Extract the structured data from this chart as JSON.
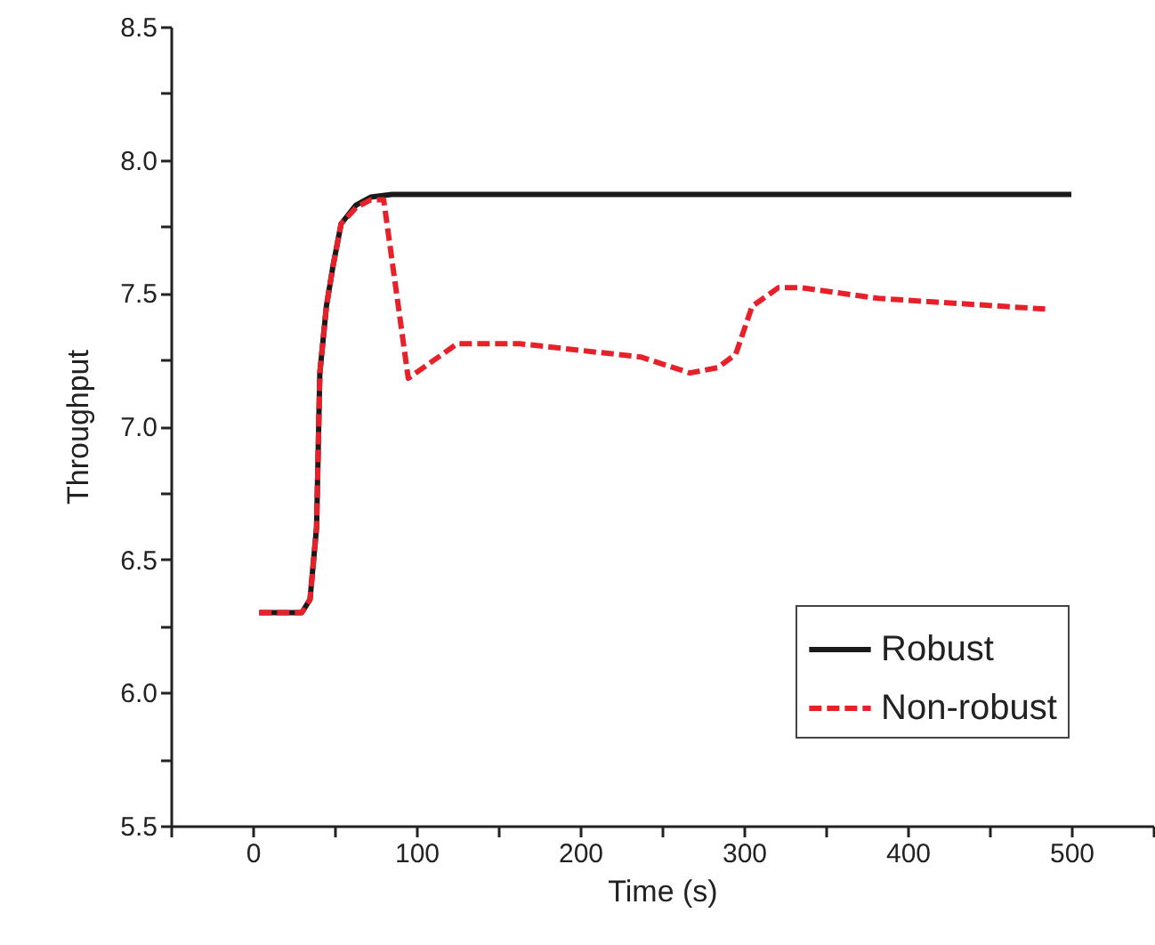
{
  "chart_data": {
    "type": "line",
    "xlabel": "Time (s)",
    "ylabel": "Throughput",
    "xlim": [
      -50,
      550
    ],
    "ylim": [
      5.5,
      8.5
    ],
    "xticks": [
      {
        "value": -50,
        "label": null
      },
      0,
      {
        "value": 50,
        "label": null
      },
      100,
      {
        "value": 150,
        "label": null
      },
      200,
      {
        "value": 250,
        "label": null
      },
      300,
      {
        "value": 350,
        "label": null
      },
      400,
      {
        "value": 450,
        "label": null
      },
      500,
      {
        "value": 550,
        "label": null
      }
    ],
    "yticks": [
      5.5,
      {
        "value": 5.75,
        "label": null
      },
      "6.0",
      {
        "value": 6.25,
        "label": null
      },
      6.5,
      {
        "value": 6.75,
        "label": null
      },
      "7.0",
      {
        "value": 7.25,
        "label": null
      },
      7.5,
      {
        "value": 7.75,
        "label": null
      },
      "8.0",
      {
        "value": 8.25,
        "label": null
      },
      8.5
    ],
    "grid": false,
    "legend": "bottom right",
    "series": [
      {
        "name": "Robust",
        "color": "#1a1a1a",
        "line_style": "solid",
        "x": [
          4,
          30,
          35,
          39,
          41,
          45,
          49,
          54,
          63,
          72,
          85,
          200,
          300,
          400,
          500
        ],
        "values": [
          6.3,
          6.3,
          6.35,
          6.62,
          7.2,
          7.45,
          7.6,
          7.76,
          7.83,
          7.86,
          7.87,
          7.87,
          7.87,
          7.87,
          7.87
        ]
      },
      {
        "name": "Non-robust",
        "color": "#e8202a",
        "line_style": "dashed",
        "x": [
          4,
          30,
          35,
          39,
          41,
          45,
          49,
          54,
          63,
          72,
          80,
          95,
          125,
          163,
          237,
          267,
          284,
          295,
          305,
          321,
          335,
          382,
          484
        ],
        "values": [
          6.3,
          6.3,
          6.35,
          6.62,
          7.2,
          7.45,
          7.6,
          7.76,
          7.82,
          7.85,
          7.85,
          7.18,
          7.31,
          7.31,
          7.26,
          7.2,
          7.22,
          7.27,
          7.45,
          7.52,
          7.52,
          7.48,
          7.44
        ]
      }
    ]
  }
}
